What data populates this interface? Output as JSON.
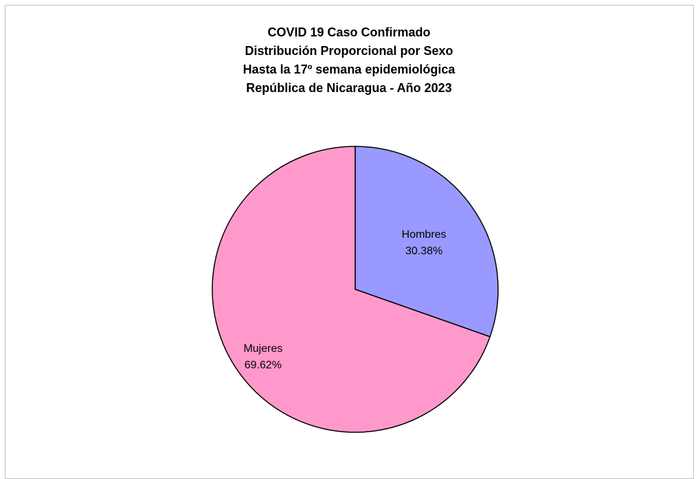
{
  "chart_data": {
    "type": "pie",
    "title": [
      "COVID 19 Caso Confirmado",
      "Distribución Proporcional por Sexo",
      "Hasta la 17º semana epidemiológica",
      "República de Nicaragua - Año 2023"
    ],
    "categories": [
      "Hombres",
      "Mujeres"
    ],
    "values": [
      30.38,
      69.62
    ],
    "value_labels": [
      "30.38%",
      "69.62%"
    ],
    "colors": [
      "#9999ff",
      "#ff99cc"
    ],
    "legend": "none"
  }
}
